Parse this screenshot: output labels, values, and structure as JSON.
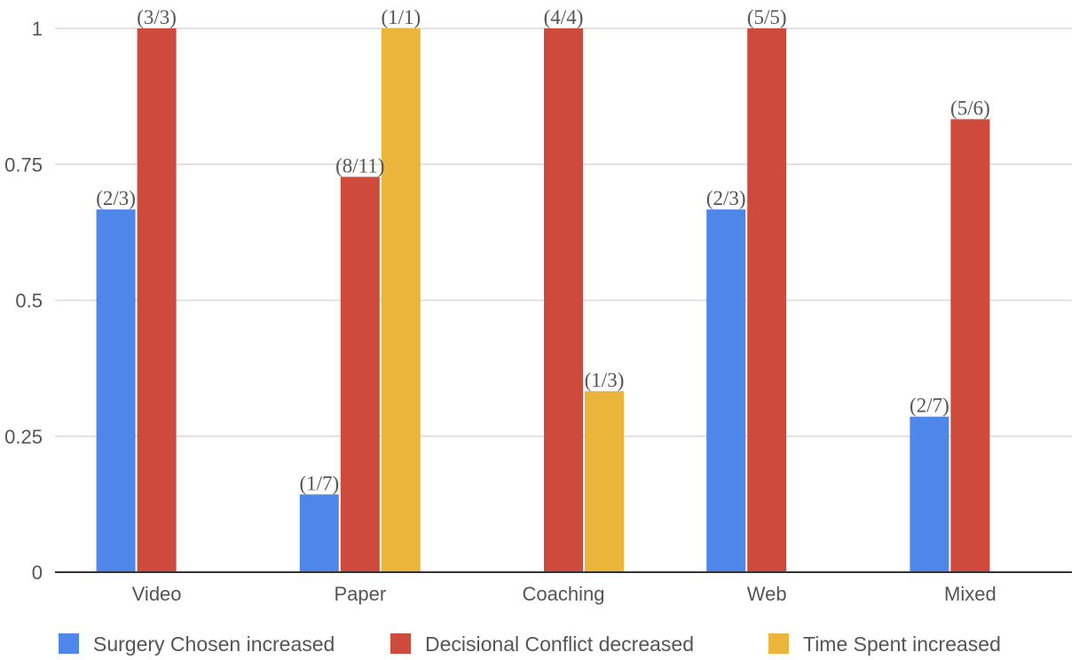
{
  "chart_data": {
    "type": "bar",
    "categories": [
      "Video",
      "Paper",
      "Coaching",
      "Web",
      "Mixed"
    ],
    "ylim": [
      0,
      1
    ],
    "yticks": [
      0,
      0.25,
      0.5,
      0.75,
      1
    ],
    "ytick_labels": [
      "0",
      "0.25",
      "0.5",
      "0.75",
      "1"
    ],
    "grid": true,
    "legend_position": "bottom",
    "series": [
      {
        "name": "Surgery Chosen increased",
        "color": "#4e86ea",
        "values": [
          0.667,
          0.143,
          null,
          0.667,
          0.286
        ],
        "labels": [
          "(2/3)",
          "(1/7)",
          "",
          "(2/3)",
          "(2/7)"
        ]
      },
      {
        "name": "Decisional Conflict decreased",
        "color": "#cd4a3c",
        "values": [
          1.0,
          0.727,
          1.0,
          1.0,
          0.833
        ],
        "labels": [
          "(3/3)",
          "(8/11)",
          "(4/4)",
          "(5/5)",
          "(5/6)"
        ]
      },
      {
        "name": "Time Spent increased",
        "color": "#ebb43b",
        "values": [
          null,
          1.0,
          0.333,
          null,
          null
        ],
        "labels": [
          "",
          "(1/1)",
          "(1/3)",
          "",
          ""
        ]
      }
    ]
  }
}
